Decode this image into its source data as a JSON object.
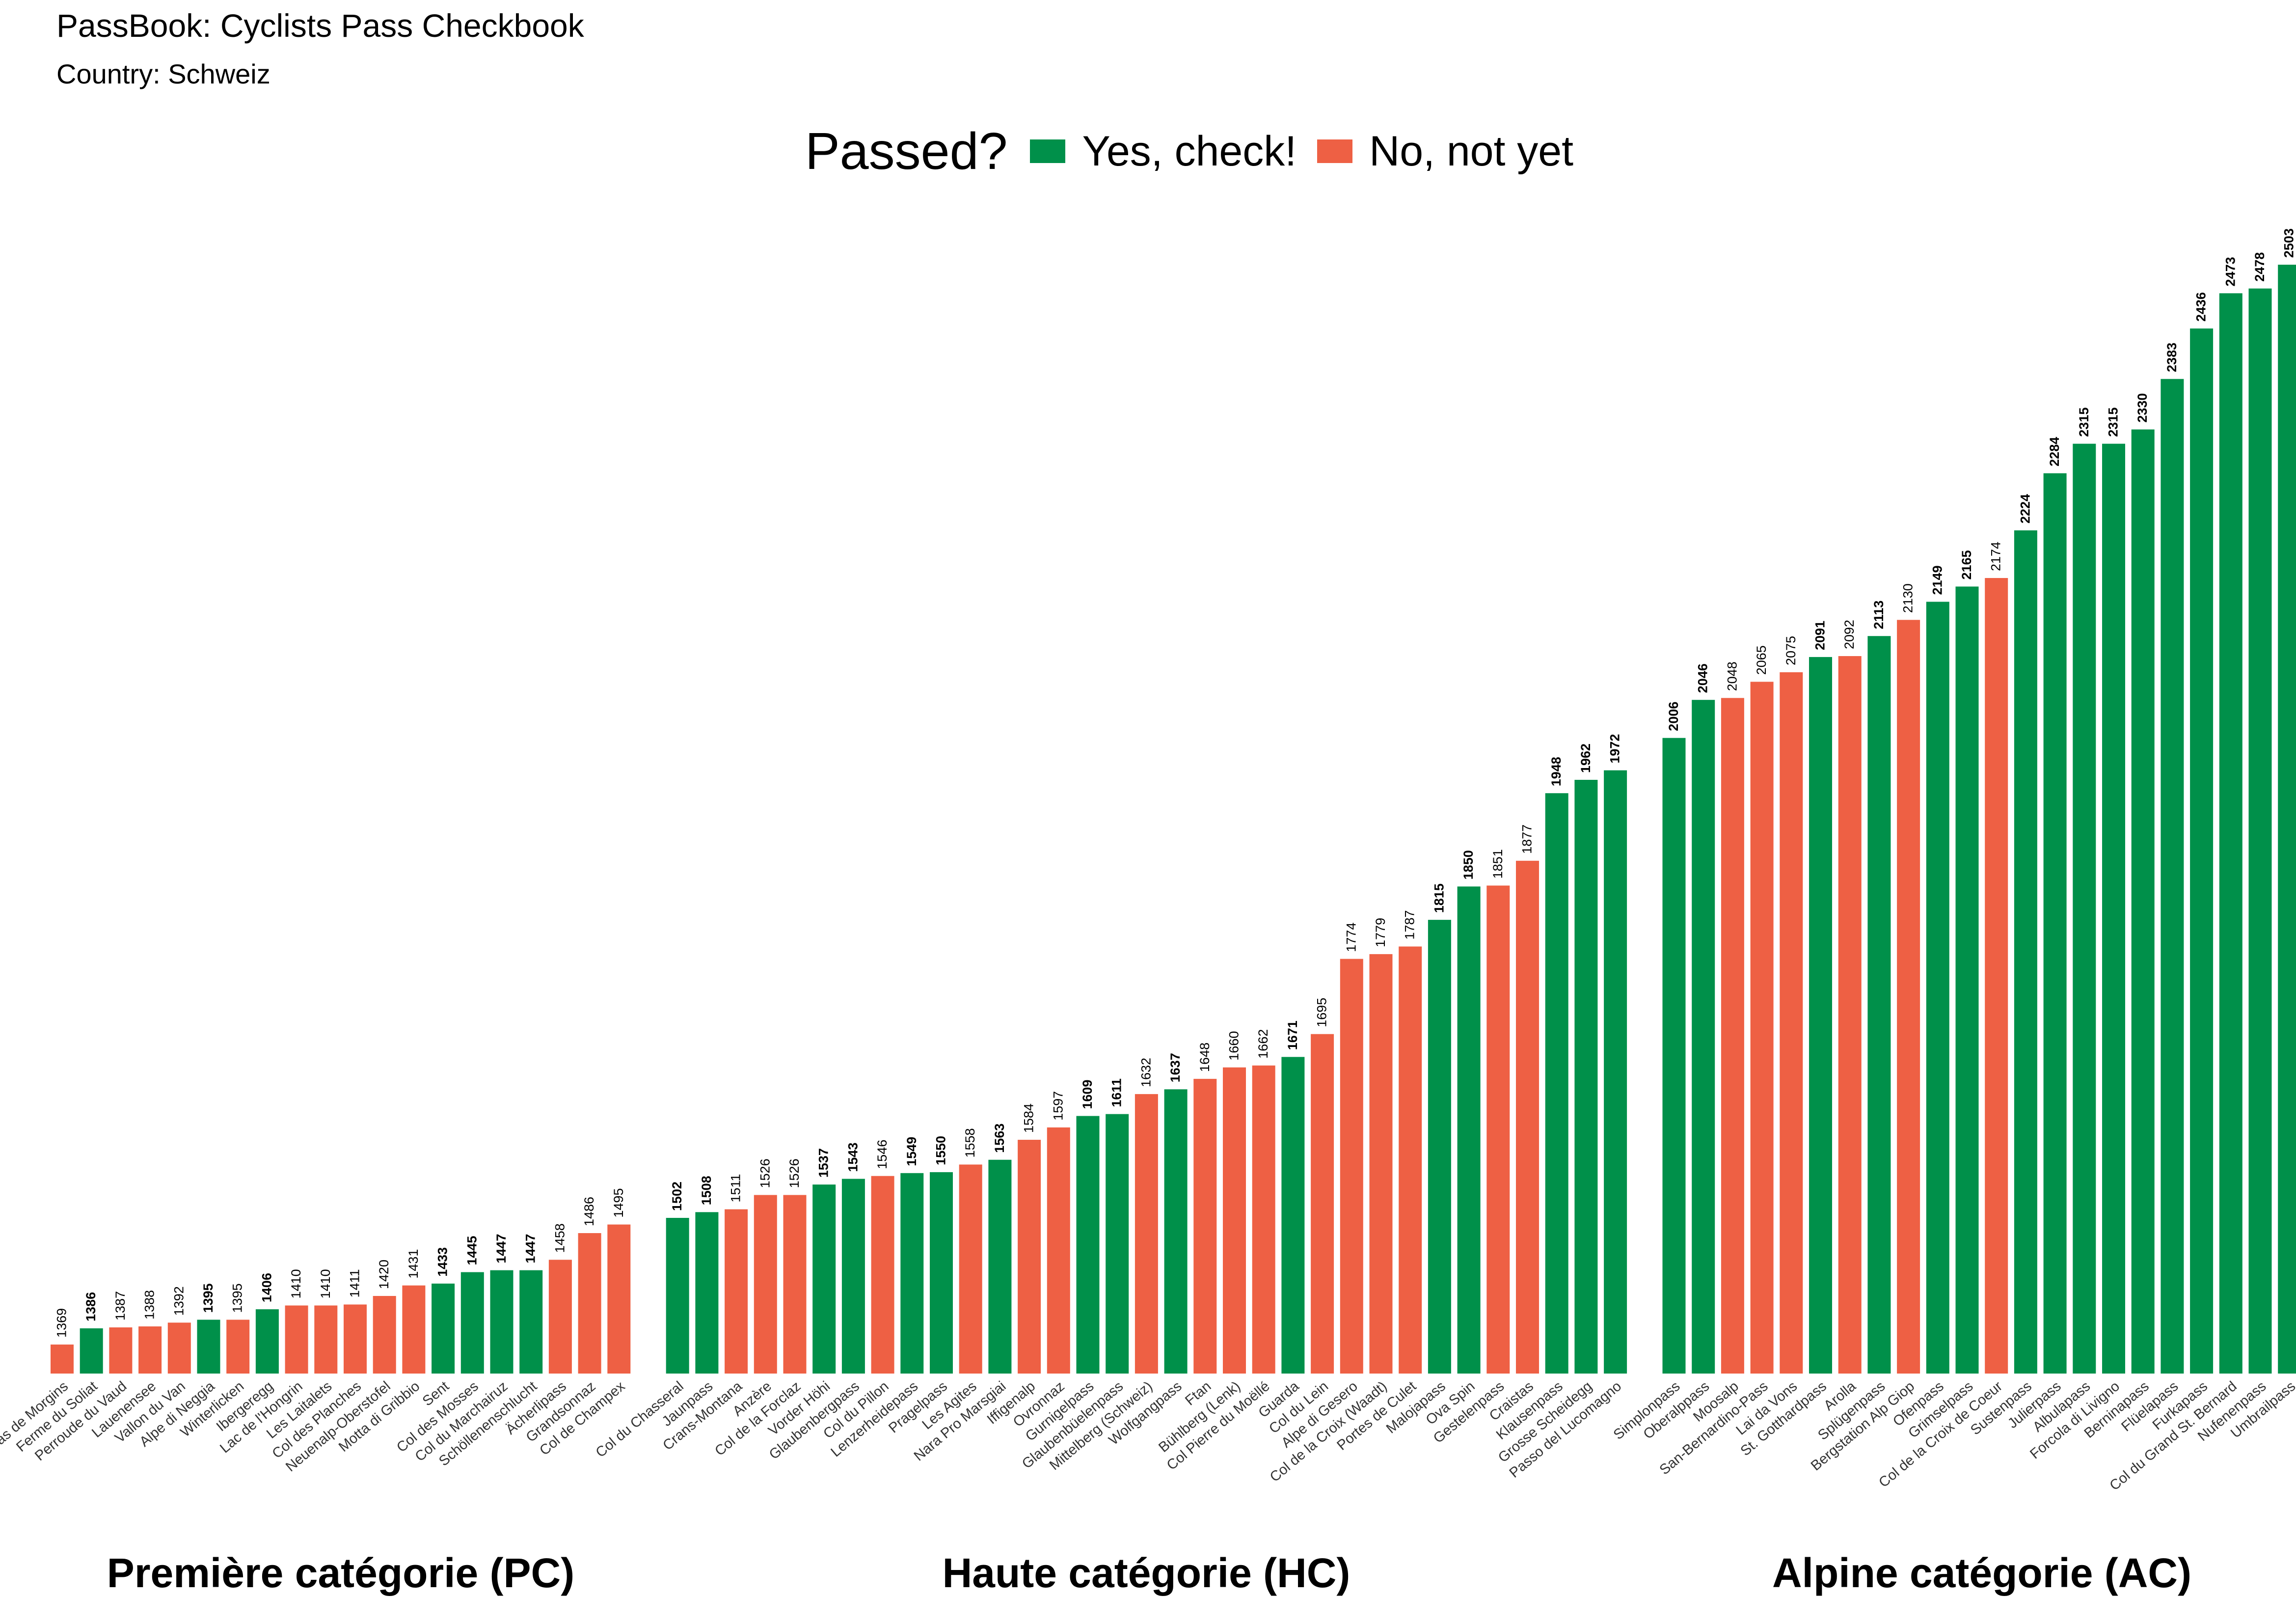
{
  "title": "PassBook: Cyclists Pass Checkbook",
  "subtitle": "Country: Schweiz",
  "legend": {
    "title": "Passed?",
    "yes_label": "Yes, check!",
    "no_label": "No, not yet"
  },
  "colors": {
    "yes": "#00904A",
    "no": "#EE6044"
  },
  "chart_data": {
    "type": "bar",
    "title": "PassBook: Cyclists Pass Checkbook",
    "subtitle": "Country: Schweiz",
    "legend_position": "top",
    "grid": false,
    "ylabel": "",
    "xlabel": "",
    "ylim": [
      1300,
      2520
    ],
    "series": [
      {
        "name": "Yes, check!"
      },
      {
        "name": "No, not yet"
      }
    ],
    "groups": [
      {
        "label": "Première catégorie (PC)",
        "bars": [
          {
            "name": "Pas de Morgins",
            "value": 1369,
            "passed": false
          },
          {
            "name": "Ferme du Soliat",
            "value": 1386,
            "passed": true
          },
          {
            "name": "Perroude du Vaud",
            "value": 1387,
            "passed": false
          },
          {
            "name": "Lauenensee",
            "value": 1388,
            "passed": false
          },
          {
            "name": "Vallon du Van",
            "value": 1392,
            "passed": false
          },
          {
            "name": "Alpe di Neggia",
            "value": 1395,
            "passed": true
          },
          {
            "name": "Winterlicken",
            "value": 1395,
            "passed": false
          },
          {
            "name": "Ibergeregg",
            "value": 1406,
            "passed": true
          },
          {
            "name": "Lac de l'Hongrin",
            "value": 1410,
            "passed": false
          },
          {
            "name": "Les Laitalets",
            "value": 1410,
            "passed": false
          },
          {
            "name": "Col des Planches",
            "value": 1411,
            "passed": false
          },
          {
            "name": "Neuenalp-Oberstofel",
            "value": 1420,
            "passed": false
          },
          {
            "name": "Motta di Gribbio",
            "value": 1431,
            "passed": false
          },
          {
            "name": "Sent",
            "value": 1433,
            "passed": true
          },
          {
            "name": "Col des Mosses",
            "value": 1445,
            "passed": true
          },
          {
            "name": "Col du Marchairuz",
            "value": 1447,
            "passed": true
          },
          {
            "name": "Schöllenenschlucht",
            "value": 1447,
            "passed": true
          },
          {
            "name": "Ächerlipass",
            "value": 1458,
            "passed": false
          },
          {
            "name": "Grandsonnaz",
            "value": 1486,
            "passed": false
          },
          {
            "name": "Col de Champex",
            "value": 1495,
            "passed": false
          }
        ]
      },
      {
        "label": "Haute catégorie (HC)",
        "bars": [
          {
            "name": "Col du Chasseral",
            "value": 1502,
            "passed": true
          },
          {
            "name": "Jaunpass",
            "value": 1508,
            "passed": true
          },
          {
            "name": "Crans-Montana",
            "value": 1511,
            "passed": false
          },
          {
            "name": "Anzère",
            "value": 1526,
            "passed": false
          },
          {
            "name": "Col de la Forclaz",
            "value": 1526,
            "passed": false
          },
          {
            "name": "Vorder Höhi",
            "value": 1537,
            "passed": true
          },
          {
            "name": "Glaubenbergpass",
            "value": 1543,
            "passed": true
          },
          {
            "name": "Col du Pillon",
            "value": 1546,
            "passed": false
          },
          {
            "name": "Lenzerheidepass",
            "value": 1549,
            "passed": true
          },
          {
            "name": "Pragelpass",
            "value": 1550,
            "passed": true
          },
          {
            "name": "Les Agites",
            "value": 1558,
            "passed": false
          },
          {
            "name": "Nara Pro Marsgiai",
            "value": 1563,
            "passed": true
          },
          {
            "name": "Iffigenalp",
            "value": 1584,
            "passed": false
          },
          {
            "name": "Ovronnaz",
            "value": 1597,
            "passed": false
          },
          {
            "name": "Gurnigelpass",
            "value": 1609,
            "passed": true
          },
          {
            "name": "Glaubenbüelenpass",
            "value": 1611,
            "passed": true
          },
          {
            "name": "Mittelberg (Schweiz)",
            "value": 1632,
            "passed": false
          },
          {
            "name": "Wolfgangpass",
            "value": 1637,
            "passed": true
          },
          {
            "name": "Ftan",
            "value": 1648,
            "passed": false
          },
          {
            "name": "Bühlberg (Lenk)",
            "value": 1660,
            "passed": false
          },
          {
            "name": "Col Pierre du Moëllé",
            "value": 1662,
            "passed": false
          },
          {
            "name": "Guarda",
            "value": 1671,
            "passed": true
          },
          {
            "name": "Col du Lein",
            "value": 1695,
            "passed": false
          },
          {
            "name": "Alpe di Gesero",
            "value": 1774,
            "passed": false
          },
          {
            "name": "Col de la Croix (Waadt)",
            "value": 1779,
            "passed": false
          },
          {
            "name": "Portes de Culet",
            "value": 1787,
            "passed": false
          },
          {
            "name": "Malojapass",
            "value": 1815,
            "passed": true
          },
          {
            "name": "Ova Spin",
            "value": 1850,
            "passed": true
          },
          {
            "name": "Gestelenpass",
            "value": 1851,
            "passed": false
          },
          {
            "name": "Craistas",
            "value": 1877,
            "passed": false
          },
          {
            "name": "Klausenpass",
            "value": 1948,
            "passed": true
          },
          {
            "name": "Grosse Scheidegg",
            "value": 1962,
            "passed": true
          },
          {
            "name": "Passo del Lucomagno",
            "value": 1972,
            "passed": true
          }
        ]
      },
      {
        "label": "Alpine catégorie (AC)",
        "bars": [
          {
            "name": "Simplonpass",
            "value": 2006,
            "passed": true
          },
          {
            "name": "Oberalppass",
            "value": 2046,
            "passed": true
          },
          {
            "name": "Moosalp",
            "value": 2048,
            "passed": false
          },
          {
            "name": "San-Bernardino-Pass",
            "value": 2065,
            "passed": false
          },
          {
            "name": "Lai da Vons",
            "value": 2075,
            "passed": false
          },
          {
            "name": "St. Gotthardpass",
            "value": 2091,
            "passed": true
          },
          {
            "name": "Arolla",
            "value": 2092,
            "passed": false
          },
          {
            "name": "Splügenpass",
            "value": 2113,
            "passed": true
          },
          {
            "name": "Bergstation Alp Giop",
            "value": 2130,
            "passed": false
          },
          {
            "name": "Ofenpass",
            "value": 2149,
            "passed": true
          },
          {
            "name": "Grimselpass",
            "value": 2165,
            "passed": true
          },
          {
            "name": "Col de la Croix de Coeur",
            "value": 2174,
            "passed": false
          },
          {
            "name": "Sustenpass",
            "value": 2224,
            "passed": true
          },
          {
            "name": "Julierpass",
            "value": 2284,
            "passed": true
          },
          {
            "name": "Albulapass",
            "value": 2315,
            "passed": true
          },
          {
            "name": "Forcola di Livigno",
            "value": 2315,
            "passed": true
          },
          {
            "name": "Berninapass",
            "value": 2330,
            "passed": true
          },
          {
            "name": "Flüelapass",
            "value": 2383,
            "passed": true
          },
          {
            "name": "Furkapass",
            "value": 2436,
            "passed": true
          },
          {
            "name": "Col du Grand St. Bernard",
            "value": 2473,
            "passed": true
          },
          {
            "name": "Nufenenpass",
            "value": 2478,
            "passed": true
          },
          {
            "name": "Umbrailpass",
            "value": 2503,
            "passed": true
          }
        ]
      }
    ]
  }
}
